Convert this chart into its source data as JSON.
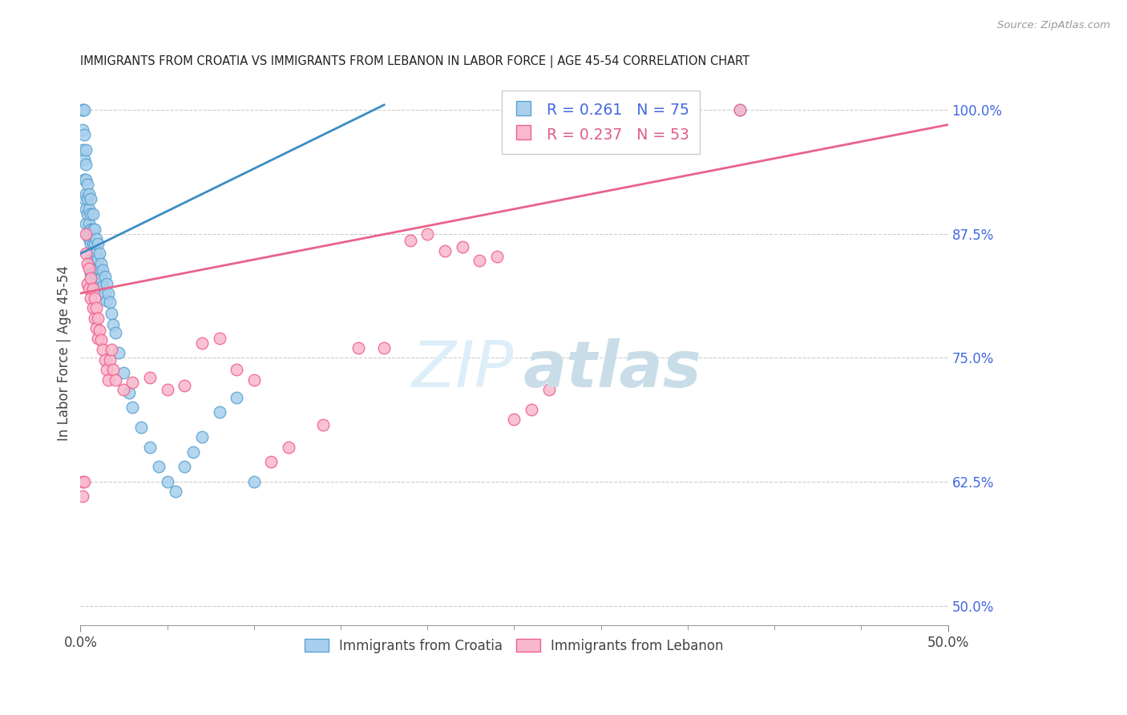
{
  "title": "IMMIGRANTS FROM CROATIA VS IMMIGRANTS FROM LEBANON IN LABOR FORCE | AGE 45-54 CORRELATION CHART",
  "source": "Source: ZipAtlas.com",
  "x_left_label": "0.0%",
  "x_right_label": "50.0%",
  "ylabel_ticks": [
    "100.0%",
    "87.5%",
    "75.0%",
    "62.5%",
    "50.0%"
  ],
  "ylabel_vals": [
    1.0,
    0.875,
    0.75,
    0.625,
    0.5
  ],
  "xlim": [
    0.0,
    0.5
  ],
  "ylim": [
    0.48,
    1.03
  ],
  "croatia_color": "#a8cfed",
  "lebanon_color": "#f9b8cb",
  "croatia_edge": "#5ba3d0",
  "lebanon_edge": "#f06090",
  "trend_croatia_color": "#3b8cc4",
  "trend_lebanon_color": "#e8638a",
  "croatia_R": 0.261,
  "croatia_N": 75,
  "lebanon_R": 0.237,
  "lebanon_N": 53,
  "croatia_trend_x0": 0.0,
  "croatia_trend_y0": 0.855,
  "croatia_trend_x1": 0.175,
  "croatia_trend_y1": 1.005,
  "lebanon_trend_x0": 0.0,
  "lebanon_trend_y0": 0.815,
  "lebanon_trend_x1": 0.5,
  "lebanon_trend_y1": 0.985,
  "cro_x": [
    0.001,
    0.001,
    0.001,
    0.001,
    0.002,
    0.002,
    0.002,
    0.002,
    0.002,
    0.003,
    0.003,
    0.003,
    0.003,
    0.003,
    0.003,
    0.004,
    0.004,
    0.004,
    0.004,
    0.005,
    0.005,
    0.005,
    0.005,
    0.006,
    0.006,
    0.006,
    0.006,
    0.006,
    0.006,
    0.007,
    0.007,
    0.007,
    0.007,
    0.008,
    0.008,
    0.008,
    0.008,
    0.009,
    0.009,
    0.009,
    0.01,
    0.01,
    0.01,
    0.011,
    0.011,
    0.011,
    0.012,
    0.012,
    0.013,
    0.013,
    0.014,
    0.014,
    0.015,
    0.015,
    0.016,
    0.017,
    0.018,
    0.019,
    0.02,
    0.022,
    0.025,
    0.028,
    0.03,
    0.035,
    0.04,
    0.045,
    0.05,
    0.055,
    0.06,
    0.065,
    0.07,
    0.08,
    0.09,
    0.1,
    0.38
  ],
  "cro_y": [
    1.0,
    1.0,
    0.98,
    0.96,
    1.0,
    0.975,
    0.95,
    0.93,
    0.91,
    0.96,
    0.945,
    0.93,
    0.915,
    0.9,
    0.885,
    0.925,
    0.91,
    0.895,
    0.875,
    0.915,
    0.9,
    0.885,
    0.87,
    0.91,
    0.895,
    0.88,
    0.865,
    0.85,
    0.835,
    0.895,
    0.88,
    0.865,
    0.85,
    0.88,
    0.865,
    0.85,
    0.835,
    0.87,
    0.855,
    0.84,
    0.865,
    0.85,
    0.835,
    0.855,
    0.84,
    0.825,
    0.845,
    0.83,
    0.838,
    0.822,
    0.832,
    0.815,
    0.825,
    0.808,
    0.815,
    0.806,
    0.795,
    0.783,
    0.775,
    0.755,
    0.735,
    0.715,
    0.7,
    0.68,
    0.66,
    0.64,
    0.625,
    0.615,
    0.64,
    0.655,
    0.67,
    0.695,
    0.71,
    0.625,
    1.0
  ],
  "leb_x": [
    0.001,
    0.001,
    0.002,
    0.003,
    0.003,
    0.004,
    0.004,
    0.005,
    0.005,
    0.006,
    0.006,
    0.007,
    0.007,
    0.008,
    0.008,
    0.009,
    0.009,
    0.01,
    0.01,
    0.011,
    0.012,
    0.013,
    0.014,
    0.015,
    0.016,
    0.017,
    0.018,
    0.019,
    0.02,
    0.025,
    0.03,
    0.04,
    0.05,
    0.06,
    0.07,
    0.08,
    0.09,
    0.1,
    0.11,
    0.12,
    0.14,
    0.16,
    0.175,
    0.19,
    0.2,
    0.21,
    0.22,
    0.23,
    0.24,
    0.25,
    0.26,
    0.27,
    0.38
  ],
  "leb_y": [
    0.625,
    0.61,
    0.625,
    0.875,
    0.855,
    0.845,
    0.825,
    0.84,
    0.82,
    0.83,
    0.81,
    0.82,
    0.8,
    0.81,
    0.79,
    0.8,
    0.78,
    0.79,
    0.77,
    0.778,
    0.768,
    0.758,
    0.748,
    0.738,
    0.728,
    0.748,
    0.758,
    0.738,
    0.728,
    0.718,
    0.725,
    0.73,
    0.718,
    0.722,
    0.765,
    0.77,
    0.738,
    0.728,
    0.645,
    0.66,
    0.682,
    0.76,
    0.76,
    0.868,
    0.875,
    0.858,
    0.862,
    0.848,
    0.852,
    0.688,
    0.698,
    0.718,
    1.0
  ]
}
